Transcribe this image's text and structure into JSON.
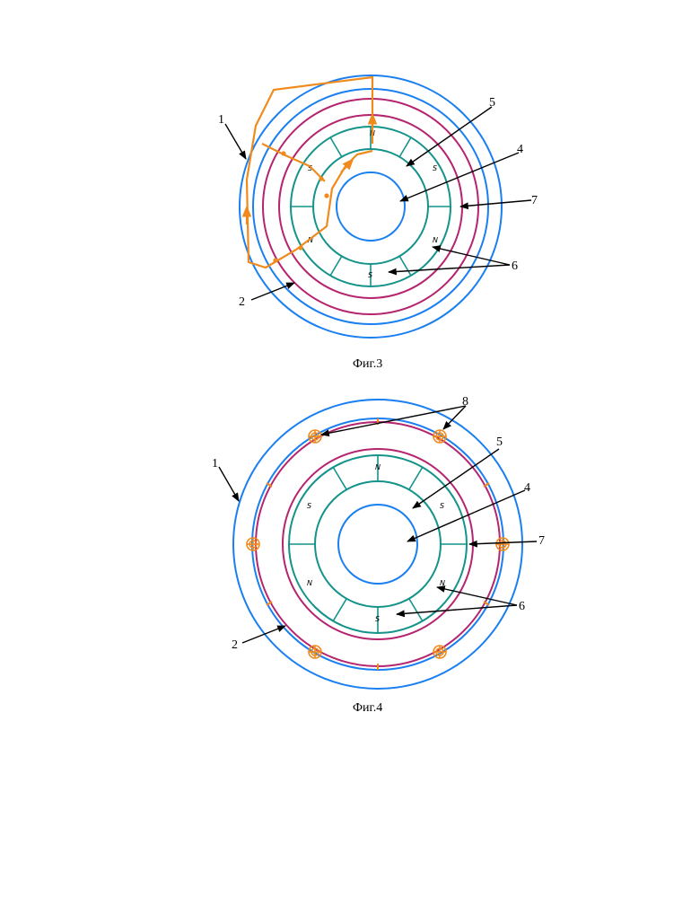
{
  "figures": [
    {
      "caption": "Фиг.3",
      "labels": [
        "1",
        "2",
        "4",
        "5",
        "6",
        "7"
      ],
      "poles": [
        "N",
        "S",
        "S",
        "N",
        "N",
        "S"
      ]
    },
    {
      "caption": "Фиг.4",
      "labels": [
        "1",
        "2",
        "4",
        "5",
        "6",
        "7",
        "8"
      ],
      "poles": [
        "N",
        "S",
        "S",
        "N",
        "N",
        "S"
      ]
    }
  ],
  "colors": {
    "outer_ring": "#1a7ff0",
    "stator_ring": "#b5246e",
    "magnet_ring": "#14938a",
    "flux_path": "#f08a1c"
  }
}
